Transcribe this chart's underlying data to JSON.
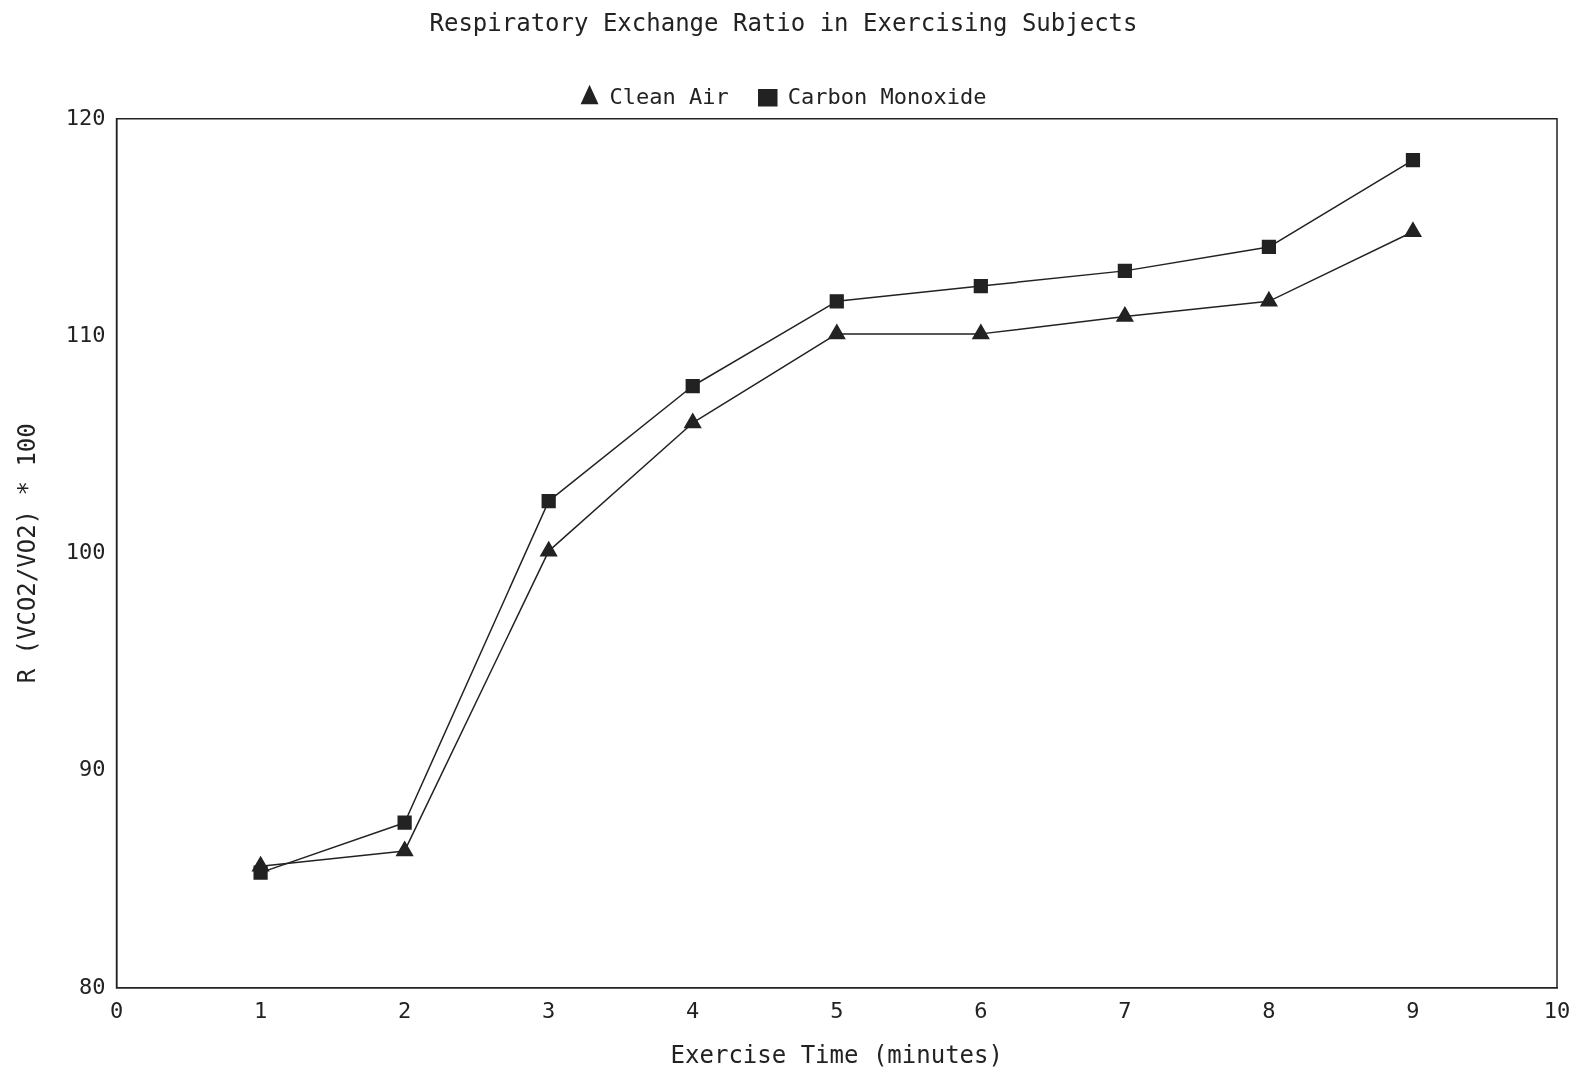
{
  "chart_data": {
    "type": "line",
    "title": "Respiratory Exchange Ratio in Exercising Subjects",
    "xlabel": "Exercise Time (minutes)",
    "ylabel": "R (VCO2/VO2) * 100",
    "x": [
      1,
      2,
      3,
      4,
      5,
      6,
      7,
      8,
      9
    ],
    "series": [
      {
        "name": "Carbon Monoxide",
        "color": "#222222",
        "marker": "square",
        "values": [
          85.3,
          87.6,
          102.4,
          107.7,
          111.6,
          112.3,
          113.0,
          114.1,
          118.1
        ]
      },
      {
        "name": "Clean Air",
        "color": "#222222",
        "marker": "triangle",
        "values": [
          85.6,
          86.3,
          100.1,
          106.0,
          110.1,
          110.1,
          110.9,
          111.6,
          114.8
        ]
      }
    ],
    "xlim": [
      0,
      10
    ],
    "xticks": [
      0,
      1,
      2,
      3,
      4,
      5,
      6,
      7,
      8,
      9,
      10
    ],
    "ylim": [
      80,
      120
    ],
    "yticks": [
      80,
      90,
      100,
      110,
      120
    ],
    "grid": false,
    "legend": "top",
    "line_style": "solid"
  }
}
